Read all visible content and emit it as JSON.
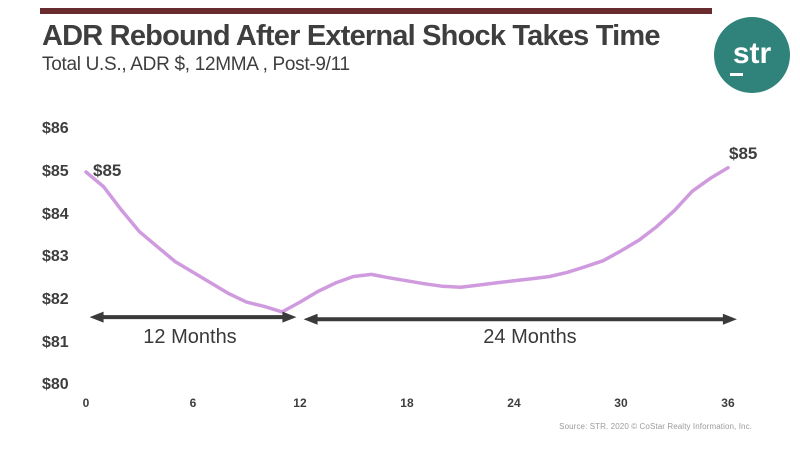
{
  "header": {
    "accent_bar_color": "#682b2e",
    "title": "ADR Rebound After External Shock Takes Time",
    "subtitle": "Total U.S., ADR $, 12MMA , Post-9/11"
  },
  "logo": {
    "text": "str",
    "bg_color": "#2f837b",
    "text_color": "#ffffff"
  },
  "chart_data": {
    "type": "line",
    "title": "ADR Rebound After External Shock Takes Time",
    "subtitle": "Total U.S., ADR $, 12MMA , Post-9/11",
    "x": [
      0,
      1,
      2,
      3,
      4,
      5,
      6,
      7,
      8,
      9,
      10,
      11,
      12,
      13,
      14,
      15,
      16,
      17,
      18,
      19,
      20,
      21,
      22,
      23,
      24,
      25,
      26,
      27,
      28,
      29,
      30,
      31,
      32,
      33,
      34,
      35,
      36
    ],
    "values": [
      85.0,
      84.65,
      84.1,
      83.6,
      83.25,
      82.9,
      82.65,
      82.4,
      82.15,
      81.95,
      81.85,
      81.72,
      81.95,
      82.2,
      82.4,
      82.55,
      82.6,
      82.52,
      82.45,
      82.38,
      82.32,
      82.3,
      82.35,
      82.4,
      82.45,
      82.5,
      82.55,
      82.65,
      82.78,
      82.92,
      83.15,
      83.4,
      83.72,
      84.1,
      84.55,
      84.85,
      85.1
    ],
    "ylim": [
      80,
      86
    ],
    "xlim": [
      0,
      36
    ],
    "grid": "off",
    "legend": "none",
    "line_color": "#d09bde",
    "arrow_color": "#3a3a3a",
    "y_ticks": [
      {
        "label": "$86",
        "value": 86
      },
      {
        "label": "$85",
        "value": 85
      },
      {
        "label": "$84",
        "value": 84
      },
      {
        "label": "$83",
        "value": 83
      },
      {
        "label": "$82",
        "value": 82
      },
      {
        "label": "$81",
        "value": 81
      },
      {
        "label": "$80",
        "value": 80
      }
    ],
    "x_ticks": [
      {
        "label": "0",
        "value": 0
      },
      {
        "label": "6",
        "value": 6
      },
      {
        "label": "12",
        "value": 12
      },
      {
        "label": "18",
        "value": 18
      },
      {
        "label": "24",
        "value": 24
      },
      {
        "label": "30",
        "value": 30
      },
      {
        "label": "36",
        "value": 36
      }
    ],
    "point_labels": [
      {
        "x": 0,
        "text": "$85"
      },
      {
        "x": 36,
        "text": "$85"
      }
    ],
    "annotations": [
      {
        "label": "12 Months",
        "from_month": 0.2,
        "to_month": 11.8,
        "at_value": 81.6
      },
      {
        "label": "24 Months",
        "from_month": 12.2,
        "to_month": 36.5,
        "at_value": 81.55
      }
    ]
  },
  "source": "Source: STR. 2020 © CoStar Realty Information, Inc."
}
